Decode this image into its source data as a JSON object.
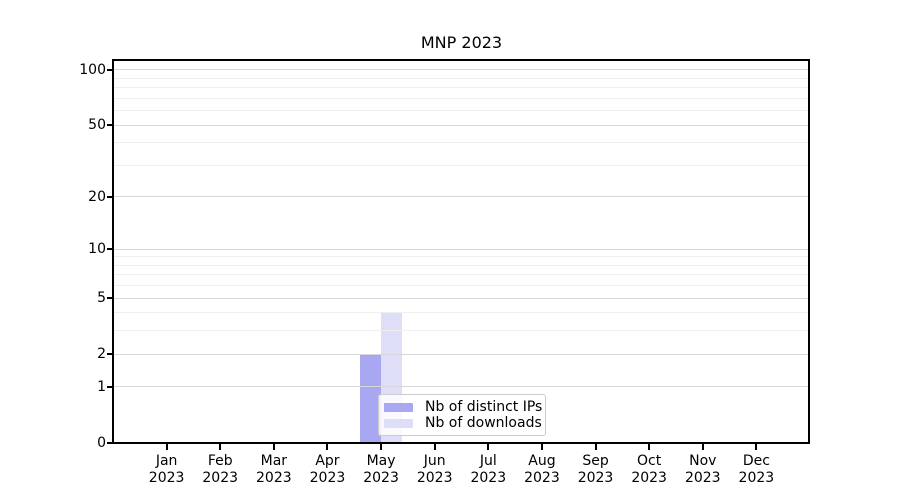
{
  "title": "MNP 2023",
  "chart_data": {
    "type": "bar",
    "title": "MNP 2023",
    "categories": [
      "Jan 2023",
      "Feb 2023",
      "Mar 2023",
      "Apr 2023",
      "May 2023",
      "Jun 2023",
      "Jul 2023",
      "Aug 2023",
      "Sep 2023",
      "Oct 2023",
      "Nov 2023",
      "Dec 2023"
    ],
    "series": [
      {
        "name": "Nb of distinct IPs",
        "color": "#a7a7f2",
        "values": [
          0,
          0,
          0,
          0,
          2,
          0,
          0,
          0,
          0,
          0,
          0,
          0
        ]
      },
      {
        "name": "Nb of downloads",
        "color": "#dedef8",
        "values": [
          0,
          0,
          0,
          0,
          4,
          0,
          0,
          0,
          0,
          0,
          0,
          0
        ]
      }
    ],
    "xlabel": "",
    "ylabel": "",
    "yscale": "symlog-log1p",
    "ylim": [
      0,
      113
    ],
    "yticks": [
      0,
      1,
      2,
      5,
      10,
      20,
      50,
      100
    ],
    "ytick_labels": [
      "0",
      "1",
      "2",
      "5",
      "10",
      "20",
      "50",
      "100"
    ],
    "minor_yticks": [
      3,
      4,
      6,
      7,
      8,
      9,
      30,
      40,
      60,
      70,
      80,
      90
    ],
    "grid": "horizontal",
    "legend_position": "inside-bottom-center",
    "legend_entries": [
      "Nb of distinct IPs",
      "Nb of downloads"
    ]
  },
  "colors": {
    "background": "#ffffff",
    "axis": "#000000",
    "grid_major": "#d7d7d7",
    "grid_minor": "#efefef",
    "legend_border": "#cccccc",
    "bar_ips": "#a7a7f2",
    "bar_downloads": "#dedef8"
  }
}
